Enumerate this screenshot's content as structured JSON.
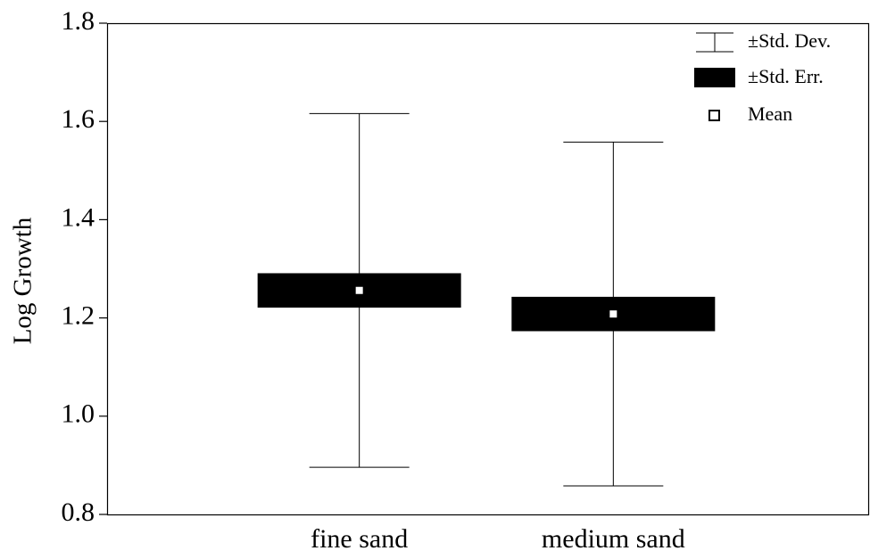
{
  "chart_data": {
    "type": "box",
    "y_label": "Log Growth",
    "categories": [
      "fine sand",
      "medium sand"
    ],
    "means": [
      1.256,
      1.208
    ],
    "std_err": [
      0.035,
      0.035
    ],
    "std_dev": [
      0.36,
      0.35
    ],
    "legend": {
      "std_dev": "±Std. Dev.",
      "std_err": "±Std. Err.",
      "mean": "Mean"
    },
    "ylim": [
      0.8,
      1.8
    ],
    "yticks": [
      0.8,
      {
        "value": 1,
        "label": "1.0"
      },
      1.2,
      1.4,
      1.6,
      1.8
    ],
    "color": "#000000"
  }
}
